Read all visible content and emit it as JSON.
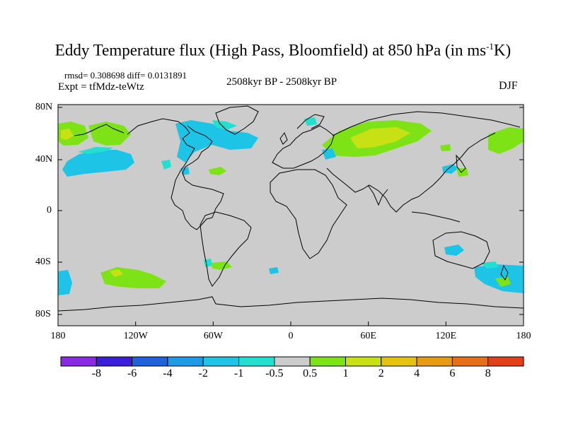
{
  "title": {
    "main": "Eddy Temperature flux (High Pass, Bloomfield) at 850 hPa (in ms",
    "sup": "-1",
    "end": "K)"
  },
  "stats": "rmsd= 0.308698 diff= 0.0131891",
  "expt": "Expt = tfMdz-teWtz",
  "period": "2508kyr BP - 2508kyr BP",
  "season": "DJF",
  "lat_labels": [
    "80N",
    "40N",
    "0",
    "40S",
    "80S"
  ],
  "lon_labels": [
    "180",
    "120W",
    "60W",
    "0",
    "60E",
    "120E",
    "180"
  ],
  "colorbar": {
    "colors": [
      "#8a2be2",
      "#3a1fd6",
      "#1f62d9",
      "#1f9be6",
      "#1ec4e6",
      "#22dfcf",
      "#cccccc",
      "#7ee316",
      "#c8e114",
      "#e6c212",
      "#e69c12",
      "#e6701a",
      "#e0401a"
    ],
    "labels": [
      "-8",
      "-6",
      "-4",
      "-2",
      "-1",
      "-0.5",
      "0.5",
      "1",
      "2",
      "4",
      "6",
      "8"
    ]
  },
  "colors": {
    "ocean_land": "#cccccc",
    "neg_light": "#22dfcf",
    "neg": "#1ec4e6",
    "pos": "#7ee316",
    "pos_strong": "#c8e114"
  }
}
